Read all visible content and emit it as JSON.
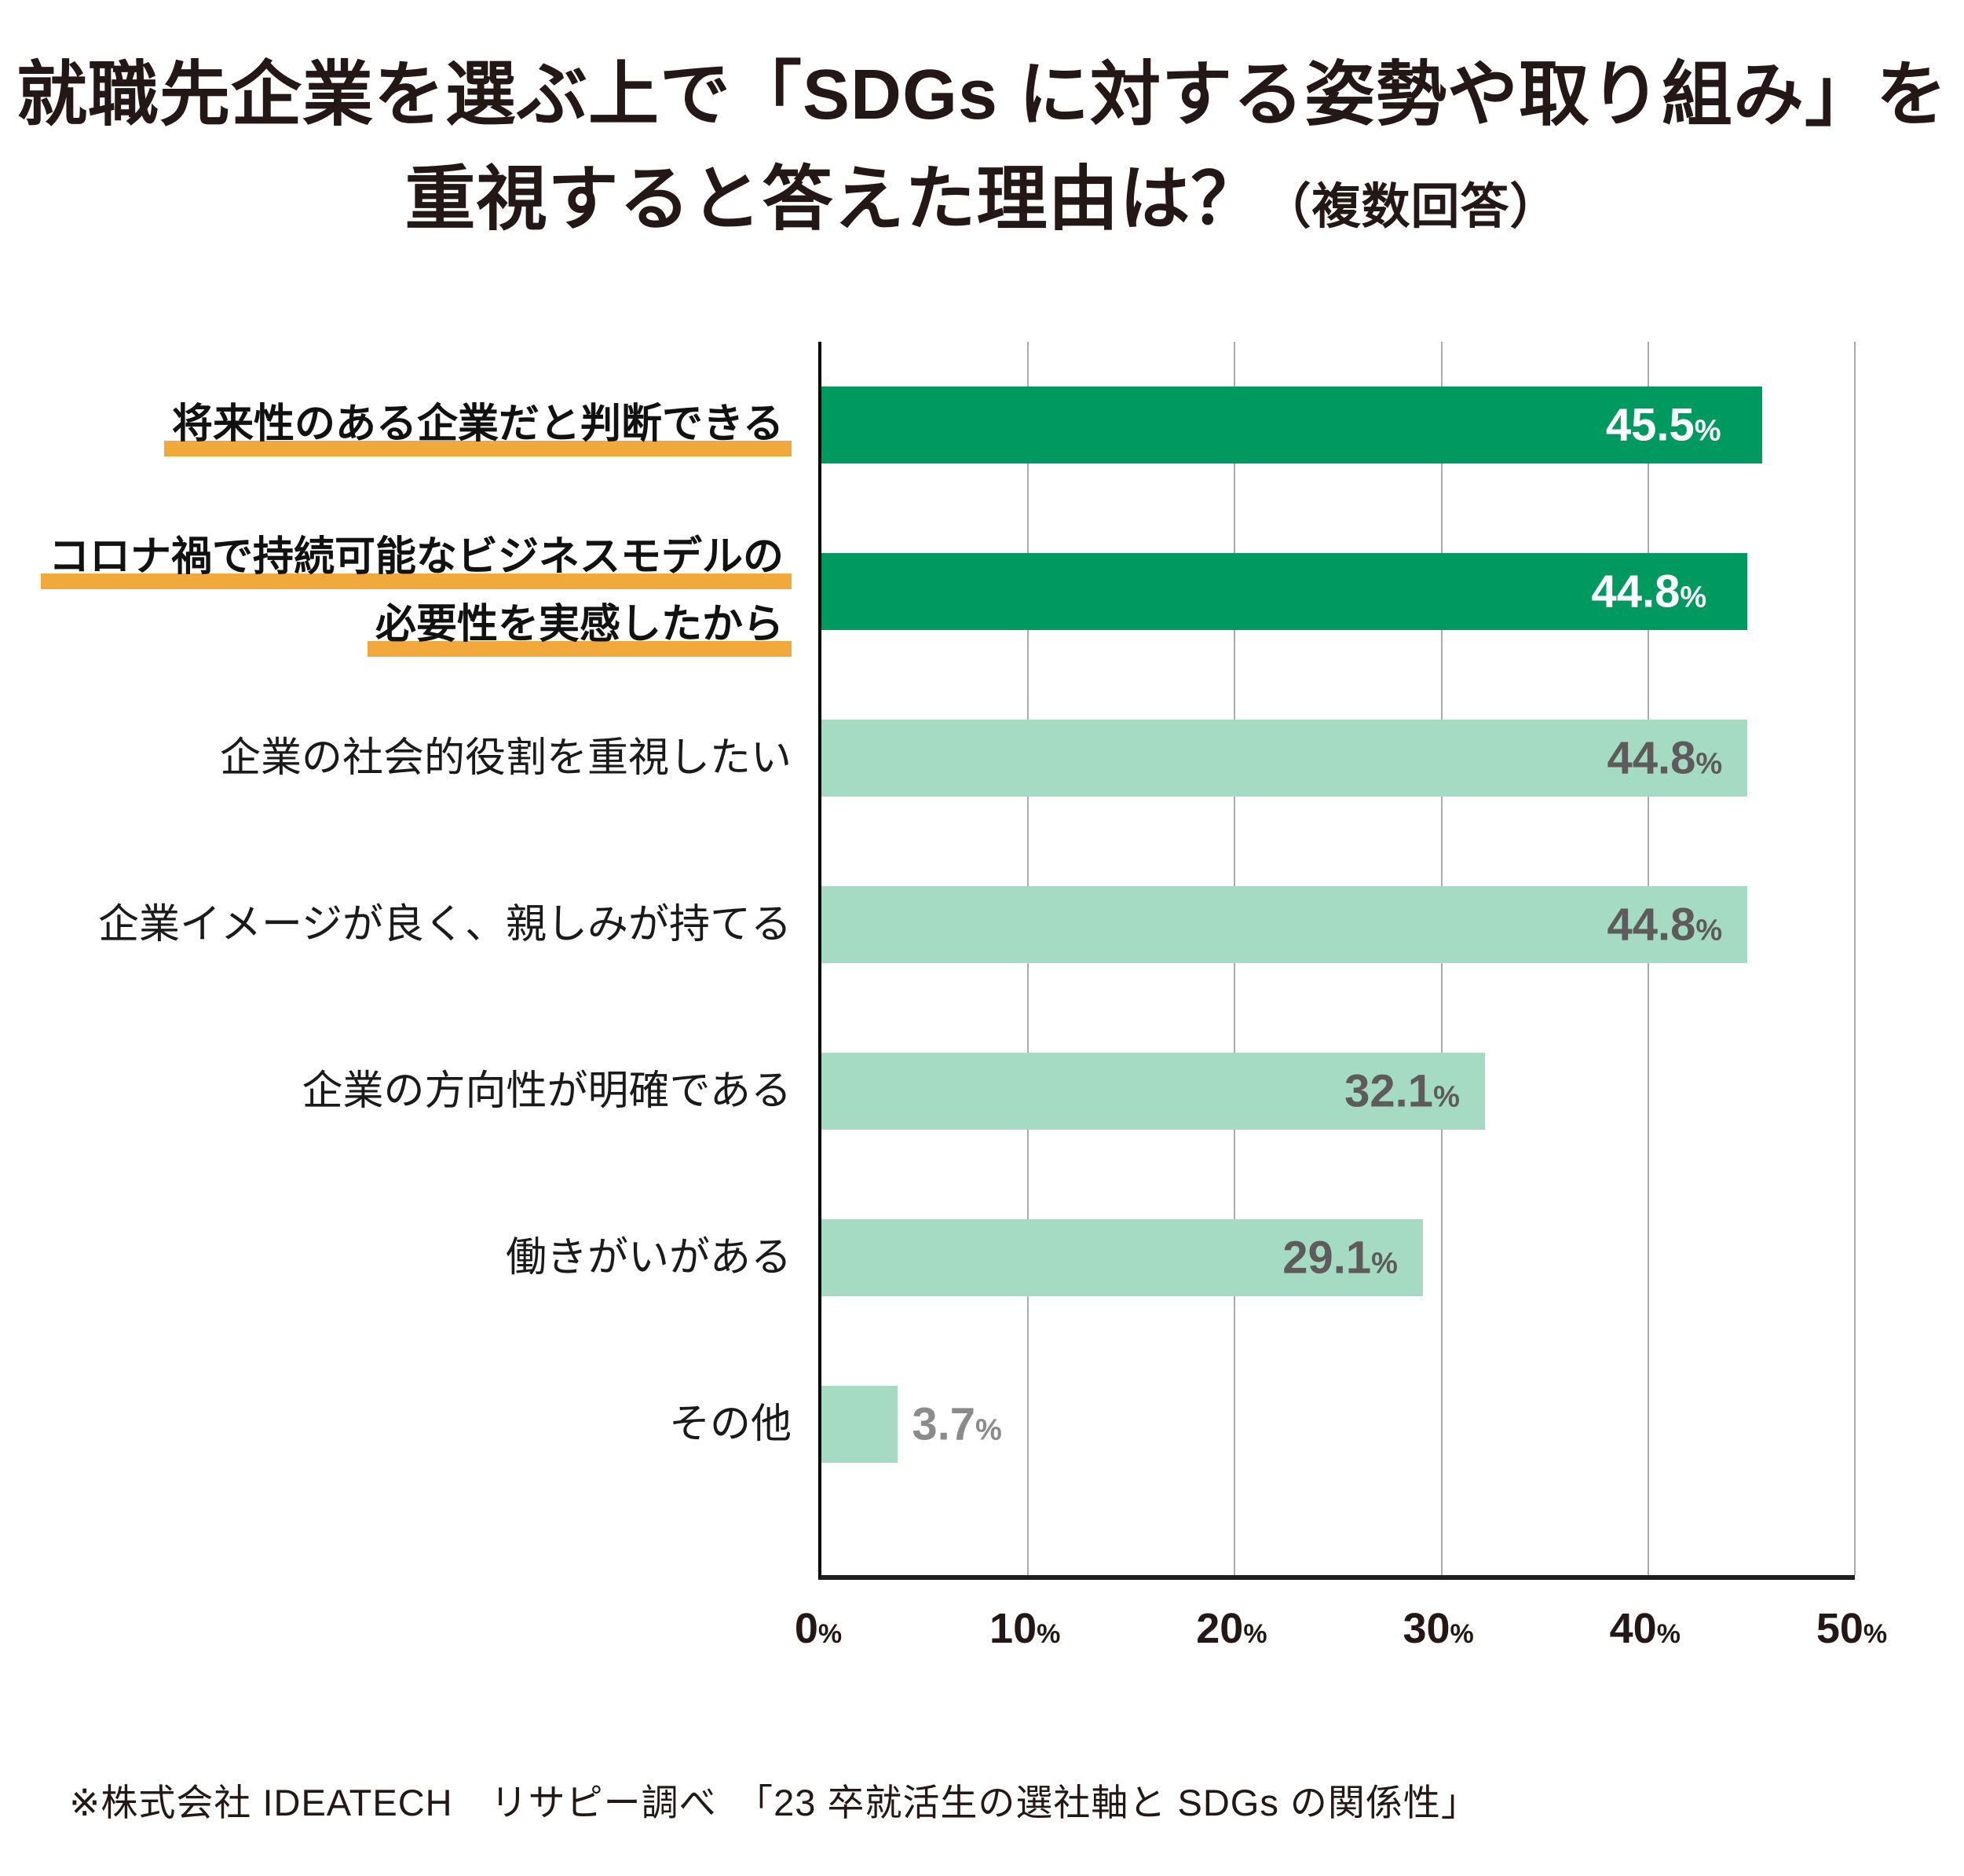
{
  "title": {
    "line1": "就職先企業を選ぶ上で「SDGs に対する姿勢や取り組み」を",
    "line2_main": "重視すると答えた理由は？",
    "line2_note": "（複数回答）"
  },
  "footer": "※株式会社 IDEATECH　リサピー調べ　「23 卒就活生の選社軸と SDGs の関係性」",
  "colors": {
    "bar_strong": "#009A60",
    "bar_light": "#A5DBC2",
    "highlight_underline": "#F2A93B",
    "value_on_strong": "#FFFFFF",
    "value_on_light": "#5D5B5B",
    "value_outside": "#8B8B8B",
    "gridline": "#ABABAB",
    "axis": "#1F1F1F",
    "text": "#231815"
  },
  "chart_data": {
    "type": "bar",
    "orientation": "horizontal",
    "title": "就職先企業を選ぶ上で「SDGsに対する姿勢や取り組み」を重視すると答えた理由は？（複数回答）",
    "xlabel": "",
    "ylabel": "",
    "xlim": [
      0,
      50
    ],
    "x_ticks": [
      0,
      10,
      20,
      30,
      40,
      50
    ],
    "x_tick_suffix": "%",
    "grid": true,
    "legend": false,
    "categories": [
      "将来性のある企業だと判断できる",
      "コロナ禍で持続可能なビジネスモデルの必要性を実感したから",
      "企業の社会的役割を重視したい",
      "企業イメージが良く、親しみが持てる",
      "企業の方向性が明確である",
      "働きがいがある",
      "その他"
    ],
    "values": [
      45.5,
      44.8,
      44.8,
      44.8,
      32.1,
      29.1,
      3.7
    ],
    "bars": [
      {
        "label_lines": [
          "将来性のある企業だと判断できる"
        ],
        "value": 45.5,
        "value_display": "45.5",
        "emphasized": true,
        "value_position": "inside"
      },
      {
        "label_lines": [
          "コロナ禍で持続可能なビジネスモデルの",
          "必要性を実感したから"
        ],
        "value": 44.8,
        "value_display": "44.8",
        "emphasized": true,
        "value_position": "inside"
      },
      {
        "label_lines": [
          "企業の社会的役割を重視したい"
        ],
        "value": 44.8,
        "value_display": "44.8",
        "emphasized": false,
        "value_position": "inside"
      },
      {
        "label_lines": [
          "企業イメージが良く、親しみが持てる"
        ],
        "value": 44.8,
        "value_display": "44.8",
        "emphasized": false,
        "value_position": "inside"
      },
      {
        "label_lines": [
          "企業の方向性が明確である"
        ],
        "value": 32.1,
        "value_display": "32.1",
        "emphasized": false,
        "value_position": "inside"
      },
      {
        "label_lines": [
          "働きがいがある"
        ],
        "value": 29.1,
        "value_display": "29.1",
        "emphasized": false,
        "value_position": "inside"
      },
      {
        "label_lines": [
          "その他"
        ],
        "value": 3.7,
        "value_display": "3.7",
        "emphasized": false,
        "value_position": "outside"
      }
    ]
  }
}
